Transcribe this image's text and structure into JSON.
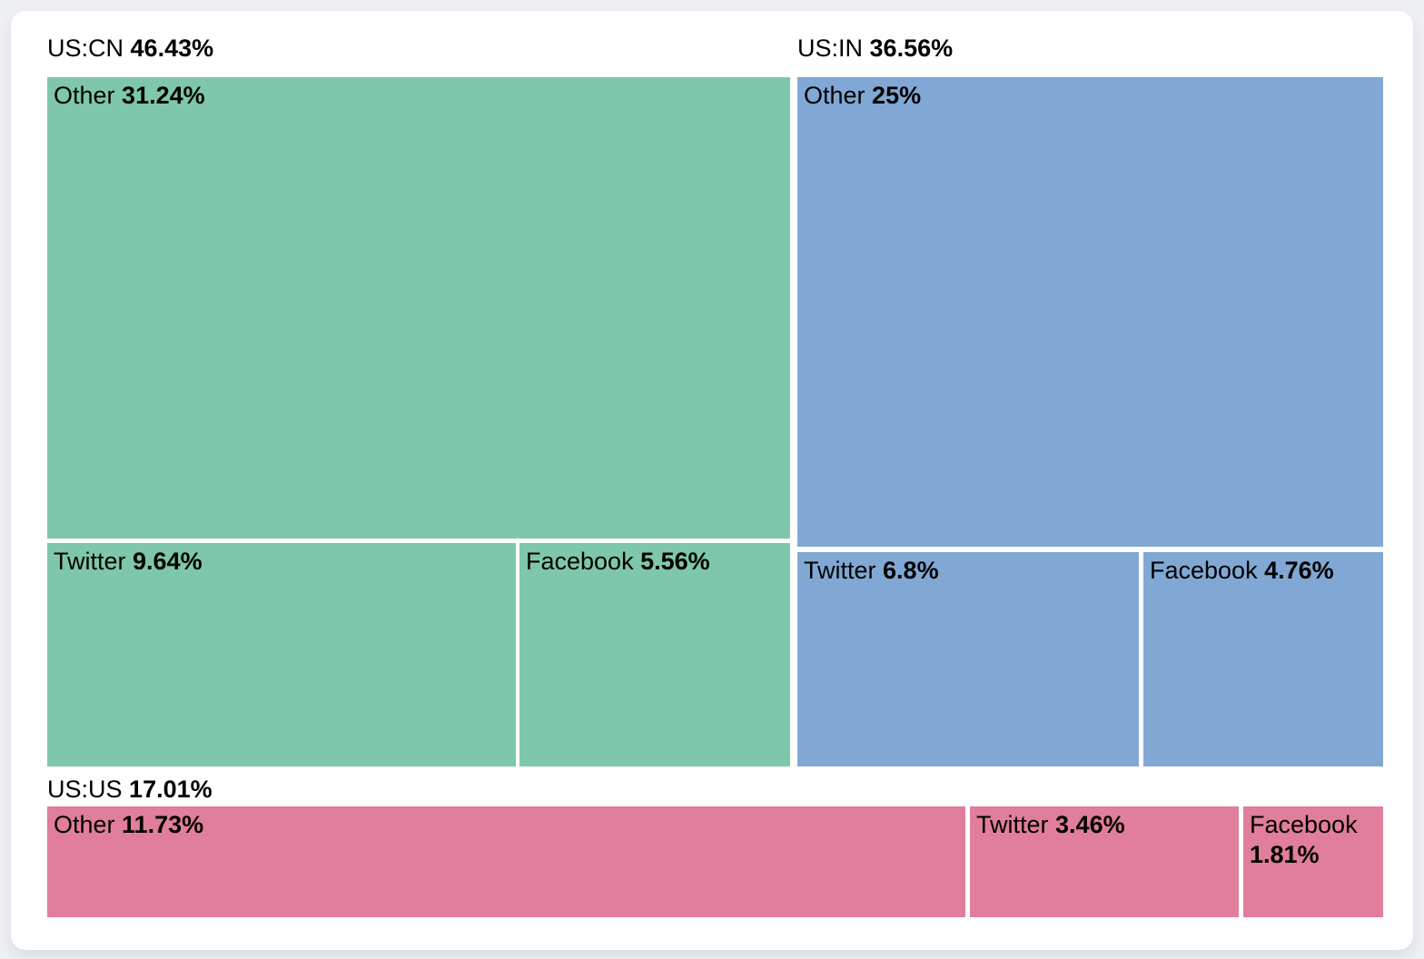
{
  "chart_data": {
    "type": "treemap",
    "title": "",
    "unit": "%",
    "legend_position": "none",
    "grid": false,
    "groups": [
      {
        "name": "US:CN",
        "value": 46.43,
        "display": "46.43%",
        "color": "#7fc7ab",
        "children": [
          {
            "name": "Other",
            "value": 31.24,
            "display": "31.24%"
          },
          {
            "name": "Twitter",
            "value": 9.64,
            "display": "9.64%"
          },
          {
            "name": "Facebook",
            "value": 5.56,
            "display": "5.56%"
          }
        ]
      },
      {
        "name": "US:IN",
        "value": 36.56,
        "display": "36.56%",
        "color": "#81a8d4",
        "children": [
          {
            "name": "Other",
            "value": 25,
            "display": "25%"
          },
          {
            "name": "Twitter",
            "value": 6.8,
            "display": "6.8%"
          },
          {
            "name": "Facebook",
            "value": 4.76,
            "display": "4.76%"
          }
        ]
      },
      {
        "name": "US:US",
        "value": 17.01,
        "display": "17.01%",
        "color": "#e07e9b",
        "children": [
          {
            "name": "Other",
            "value": 11.73,
            "display": "11.73%"
          },
          {
            "name": "Twitter",
            "value": 3.46,
            "display": "3.46%"
          },
          {
            "name": "Facebook",
            "value": 1.81,
            "display": "1.81%"
          }
        ]
      }
    ]
  }
}
